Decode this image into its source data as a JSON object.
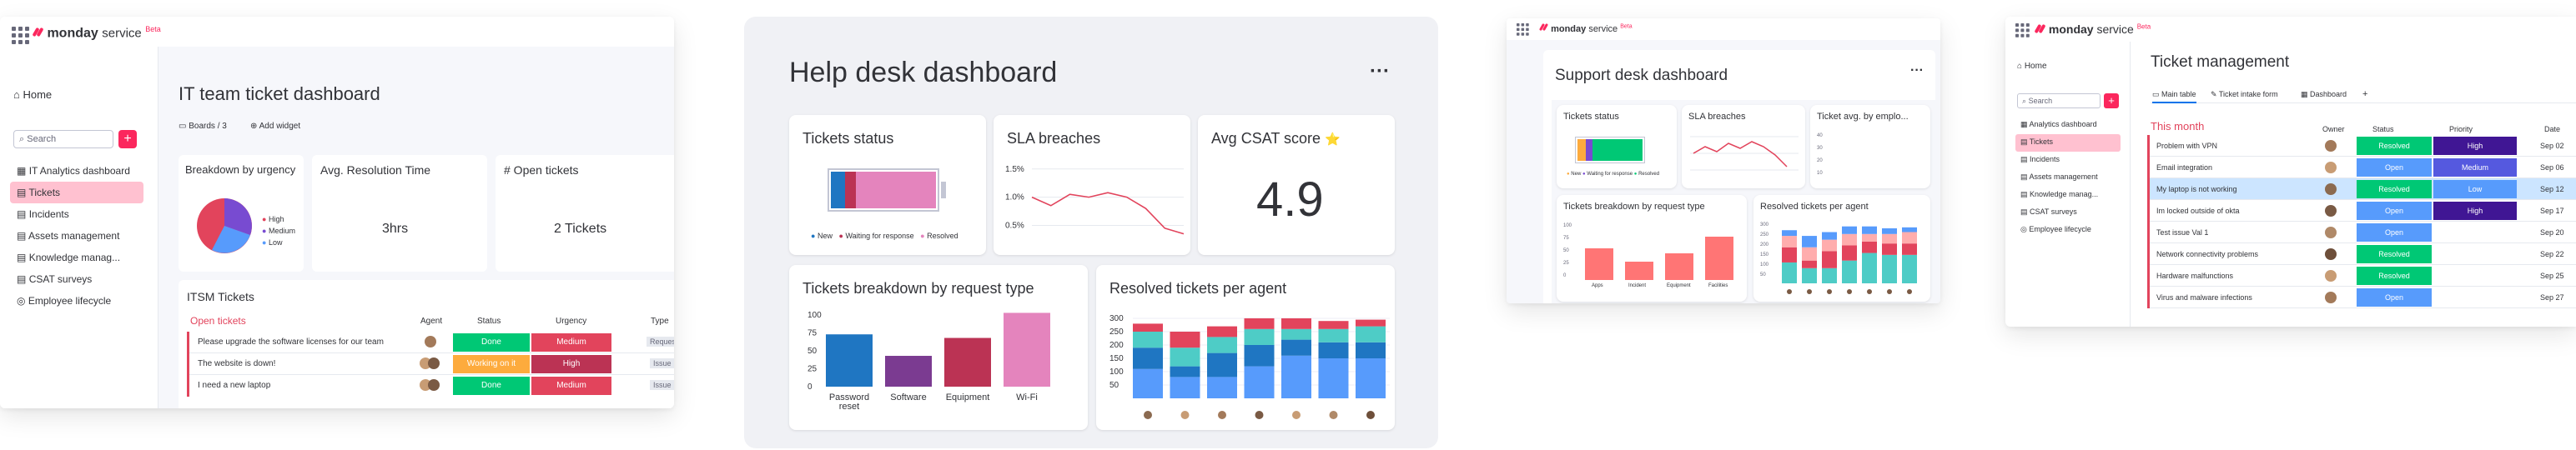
{
  "panel1": {
    "brand": "monday",
    "brand_suffix": "service",
    "beta": "Beta",
    "home": "Home",
    "search_placeholder": "Search",
    "nav": [
      "IT Analytics dashboard",
      "Tickets",
      "Incidents",
      "Assets management",
      "Knowledge manag...",
      "CSAT surveys",
      "Employee lifecycle"
    ],
    "title": "IT team ticket dashboard",
    "boards": "Boards / 3",
    "add_widget": "Add widget",
    "widgets": {
      "urgency_title": "Breakdown by urgency",
      "legend": [
        "High",
        "Medium",
        "Low"
      ],
      "resolution_title": "Avg. Resolution Time",
      "resolution_value": "3hrs",
      "open_title": "# Open tickets",
      "open_value": "2 Tickets"
    },
    "itsm_title": "ITSM Tickets",
    "group": "Open tickets",
    "columns": [
      "Agent",
      "Status",
      "Urgency",
      "Type"
    ],
    "rows": [
      {
        "name": "Please upgrade the software licenses for our team",
        "status": "Done",
        "urgency": "Medium",
        "type": "Request"
      },
      {
        "name": "The website is down!",
        "status": "Working on it",
        "urgency": "High",
        "type": "Issue"
      },
      {
        "name": "I need a new laptop",
        "status": "Done",
        "urgency": "Medium",
        "type": "Issue"
      }
    ],
    "pie_data": {
      "type": "pie",
      "labels": [
        "High",
        "Medium",
        "Low"
      ],
      "values": [
        35,
        35,
        30
      ]
    },
    "colors": {
      "accent": "#fb275d",
      "done": "#00c875",
      "working": "#fdab3d",
      "high": "#e2445c",
      "medium": "#e2445c"
    }
  },
  "panel2": {
    "title": "Help desk dashboard",
    "more": "···",
    "tickets_status_title": "Tickets status",
    "status_legend": [
      "New",
      "Waiting for response",
      "Resolved"
    ],
    "sla_title": "SLA breaches",
    "sla_ticks": [
      "1.5%",
      "1.0%",
      "0.5%"
    ],
    "csat_title": "Avg CSAT score",
    "csat_star": "⭐",
    "csat_value": "4.9",
    "type_title": "Tickets breakdown by request type",
    "type_yticks": [
      "100",
      "75",
      "50",
      "25",
      "0"
    ],
    "agent_title": "Resolved tickets per agent",
    "agent_yticks": [
      "300",
      "250",
      "200",
      "150",
      "100",
      "50"
    ]
  },
  "chart_data": [
    {
      "type": "bar",
      "title": "Tickets status",
      "categories": [
        "New",
        "Waiting for response",
        "Resolved"
      ],
      "values": [
        10,
        8,
        57
      ],
      "stacked": true
    },
    {
      "type": "line",
      "title": "SLA breaches",
      "x": [
        1,
        2,
        3,
        4,
        5,
        6,
        7,
        8,
        9
      ],
      "values": [
        1.0,
        0.85,
        1.05,
        1.0,
        1.08,
        1.0,
        0.8,
        0.45,
        0.35
      ],
      "ylim": [
        0.3,
        1.6
      ],
      "yticks": [
        "1.5%",
        "1.0%",
        "0.5%"
      ]
    },
    {
      "type": "bar",
      "title": "Tickets breakdown by request type",
      "categories": [
        "Password reset",
        "Software",
        "Equipment",
        "Wi-Fi"
      ],
      "values": [
        73,
        43,
        68,
        103
      ],
      "ylim": [
        0,
        100
      ],
      "colors": [
        "#1f76c2",
        "#7b3b91",
        "#bb3354",
        "#e484bd"
      ]
    },
    {
      "type": "bar",
      "title": "Resolved tickets per agent",
      "stacked": true,
      "categories": [
        "1",
        "2",
        "3",
        "4",
        "5",
        "6",
        "7"
      ],
      "ylim": [
        0,
        325
      ],
      "series": [
        {
          "values": [
            110,
            80,
            80,
            120,
            160,
            150,
            150
          ]
        },
        {
          "values": [
            80,
            40,
            90,
            80,
            60,
            60,
            60
          ]
        },
        {
          "values": [
            60,
            70,
            60,
            60,
            40,
            50,
            60
          ]
        },
        {
          "values": [
            30,
            60,
            40,
            40,
            40,
            30,
            25
          ]
        }
      ],
      "colors": [
        "#579bfc",
        "#1f76c2",
        "#4eccc6",
        "#e2445c",
        "#ffadad"
      ]
    }
  ],
  "panel3": {
    "brand": "monday",
    "brand_suffix": "service",
    "beta": "Beta",
    "title": "Support desk dashboard",
    "more": "···",
    "w1": "Tickets status",
    "w1_legend": [
      "New",
      "Waiting for response",
      "Resolved"
    ],
    "w2": "SLA breaches",
    "w3": "Ticket avg. by emplo...",
    "w3_ticks": [
      "40",
      "30",
      "20",
      "10"
    ],
    "w4": "Tickets breakdown by request type",
    "w4_cats": [
      "Apps",
      "Incident",
      "Equipment",
      "Facilities"
    ],
    "w4_ticks": [
      "100",
      "75",
      "50",
      "25",
      "0"
    ],
    "w5": "Resolved tickets per agent",
    "w5_ticks": [
      "300",
      "250",
      "200",
      "150",
      "100",
      "50"
    ]
  },
  "panel4": {
    "brand": "monday",
    "brand_suffix": "service",
    "beta": "Beta",
    "home": "Home",
    "search_placeholder": "Search",
    "nav": [
      "Analytics dashboard",
      "Tickets",
      "Incidents",
      "Assets management",
      "Knowledge manag...",
      "CSAT surveys",
      "Employee lifecycle"
    ],
    "title": "Ticket management",
    "tabs": [
      "Main table",
      "Ticket intake form",
      "Dashboard"
    ],
    "add_tab": "+",
    "group": "This month",
    "columns": [
      "Owner",
      "Status",
      "Priority",
      "Date"
    ],
    "rows": [
      {
        "name": "Problem with VPN",
        "status": "Resolved",
        "priority": "High",
        "date": "Sep 02"
      },
      {
        "name": "Email integration",
        "status": "Open",
        "priority": "Medium",
        "date": "Sep 06"
      },
      {
        "name": "My laptop is not working",
        "status": "Resolved",
        "priority": "Low",
        "date": "Sep 12"
      },
      {
        "name": "Im locked outside of okta",
        "status": "Open",
        "priority": "High",
        "date": "Sep 17"
      },
      {
        "name": "Test issue Val 1",
        "status": "Open",
        "priority": "",
        "date": "Sep 20"
      },
      {
        "name": "Network connectivity problems",
        "status": "Resolved",
        "priority": "",
        "date": "Sep 22"
      },
      {
        "name": "Hardware malfunctions",
        "status": "Resolved",
        "priority": "",
        "date": "Sep 25"
      },
      {
        "name": "Virus and malware infections",
        "status": "Open",
        "priority": "",
        "date": "Sep 27"
      }
    ]
  }
}
